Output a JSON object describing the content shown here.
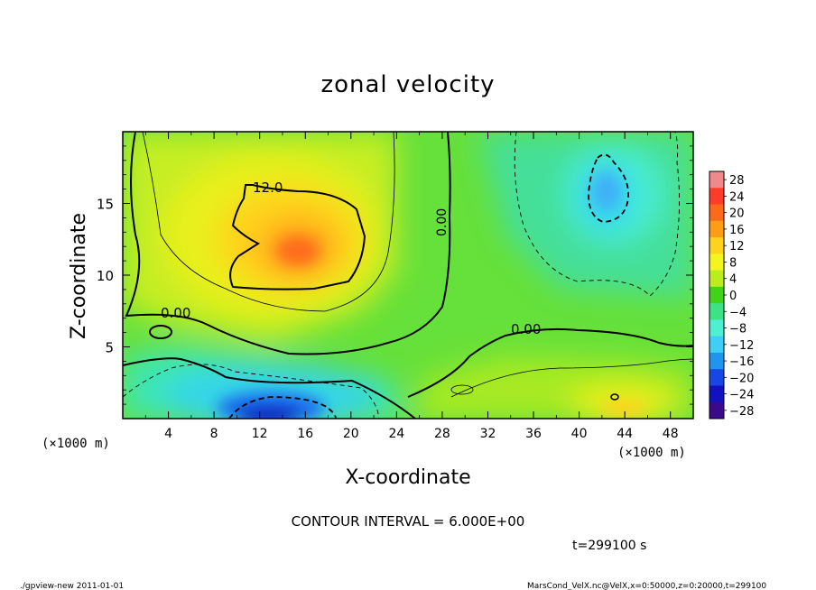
{
  "chart_data": {
    "type": "heatmap",
    "title": "zonal velocity",
    "xlabel": "X-coordinate",
    "ylabel": "Z-coordinate",
    "x_unit": "(×1000 m)",
    "y_unit": "(×1000 m)",
    "xlim": [
      0,
      50
    ],
    "ylim": [
      0,
      20
    ],
    "x_ticks": [
      "4",
      "8",
      "12",
      "16",
      "20",
      "24",
      "28",
      "32",
      "36",
      "40",
      "44",
      "48"
    ],
    "y_ticks": [
      "5",
      "10",
      "15"
    ],
    "contour_interval_text": "CONTOUR INTERVAL = 6.000E+00",
    "contour_labels": [
      "12.0",
      "0.00",
      "0.00",
      "0.00"
    ],
    "colorbar_labels": [
      "28",
      "24",
      "20",
      "16",
      "12",
      "8",
      "4",
      "0",
      "−4",
      "−8",
      "−12",
      "−16",
      "−20",
      "−24",
      "−28"
    ],
    "colorbar_colors": [
      "#f08a8a",
      "#ff3b2a",
      "#ff6a1a",
      "#ff9d14",
      "#ffd21e",
      "#f3f51c",
      "#b9ee1c",
      "#43d21a",
      "#3de284",
      "#4ef0d2",
      "#3fcff6",
      "#1f95ee",
      "#1746e4",
      "#1111c0",
      "#3b0a8a"
    ],
    "features": [
      {
        "kind": "max",
        "x": 15,
        "z": 11.5,
        "value": 16
      },
      {
        "kind": "min",
        "x": 14,
        "z": 1,
        "value": -20
      },
      {
        "kind": "min",
        "x": 42,
        "z": 15,
        "value": -12
      },
      {
        "kind": "max",
        "x": 43,
        "z": 1,
        "value": 10
      }
    ]
  },
  "footer": {
    "time": "t=299100 s",
    "left": "./gpview-new  2011-01-01",
    "right": "MarsCond_VelX.nc@VelX,x=0:50000,z=0:20000,t=299100"
  }
}
